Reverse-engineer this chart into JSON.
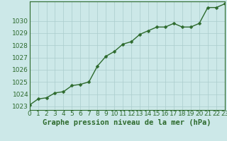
{
  "x": [
    0,
    1,
    2,
    3,
    4,
    5,
    6,
    7,
    8,
    9,
    10,
    11,
    12,
    13,
    14,
    15,
    16,
    17,
    18,
    19,
    20,
    21,
    22,
    23
  ],
  "y": [
    1023.1,
    1023.6,
    1023.7,
    1024.1,
    1024.2,
    1024.7,
    1024.8,
    1025.0,
    1026.3,
    1027.1,
    1027.5,
    1028.1,
    1028.3,
    1028.9,
    1029.2,
    1029.5,
    1029.5,
    1029.8,
    1029.5,
    1029.5,
    1029.8,
    1031.1,
    1031.1,
    1031.4
  ],
  "ylim": [
    1022.7,
    1031.6
  ],
  "xlim": [
    0,
    23
  ],
  "yticks": [
    1023,
    1024,
    1025,
    1026,
    1027,
    1028,
    1029,
    1030
  ],
  "xticks": [
    0,
    1,
    2,
    3,
    4,
    5,
    6,
    7,
    8,
    9,
    10,
    11,
    12,
    13,
    14,
    15,
    16,
    17,
    18,
    19,
    20,
    21,
    22,
    23
  ],
  "line_color": "#2d6a2d",
  "marker": "D",
  "marker_size": 2.5,
  "bg_color": "#cce8e8",
  "grid_color": "#aacccc",
  "xlabel": "Graphe pression niveau de la mer (hPa)",
  "xlabel_color": "#2d6a2d",
  "xlabel_fontsize": 7.5,
  "tick_fontsize": 6.5,
  "tick_color": "#2d6a2d",
  "line_width": 1.0,
  "spine_color": "#2d6a2d"
}
